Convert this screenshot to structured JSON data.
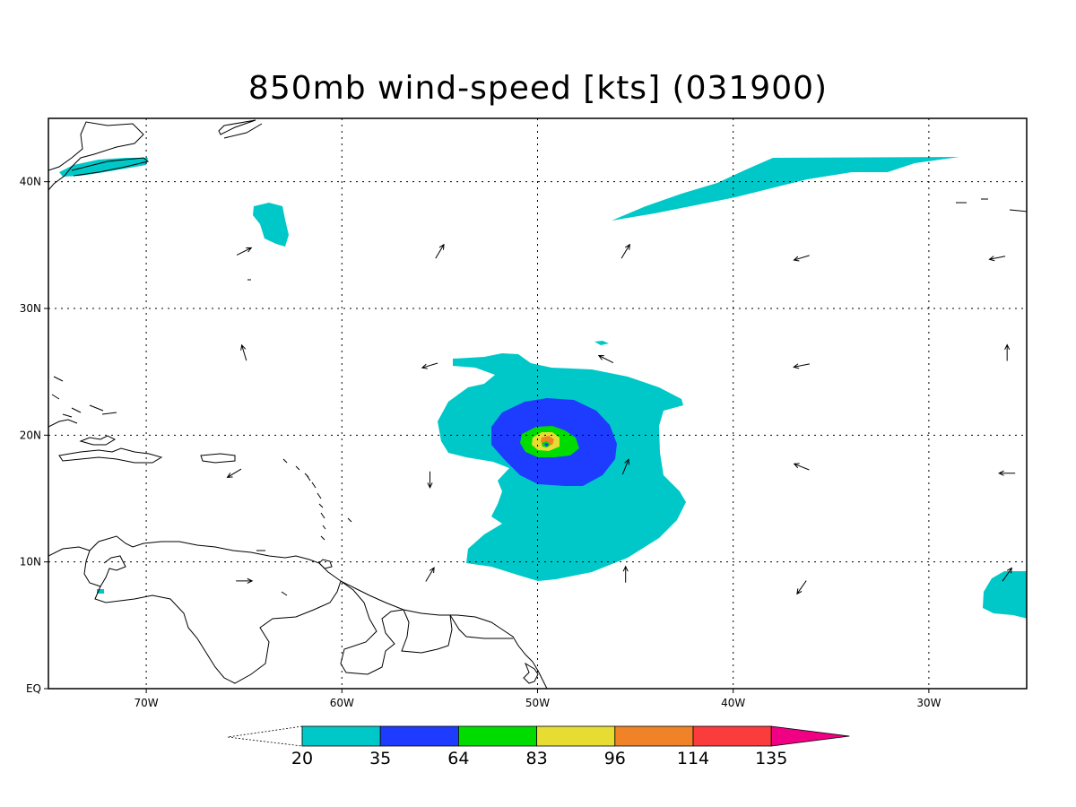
{
  "title": "850mb wind-speed [kts] (031900)",
  "map": {
    "lon_range": [
      -75,
      -25
    ],
    "lat_range": [
      0,
      45
    ],
    "lon_ticks": [
      {
        "value": -70,
        "label": "70W"
      },
      {
        "value": -60,
        "label": "60W"
      },
      {
        "value": -50,
        "label": "50W"
      },
      {
        "value": -40,
        "label": "40W"
      },
      {
        "value": -30,
        "label": "30W"
      }
    ],
    "lat_ticks": [
      {
        "value": 0,
        "label": "EQ"
      },
      {
        "value": 10,
        "label": "10N"
      },
      {
        "value": 20,
        "label": "20N"
      },
      {
        "value": 30,
        "label": "30N"
      },
      {
        "value": 40,
        "label": "40N"
      }
    ],
    "grid": true,
    "wind_vectors": [
      {
        "lon": -65,
        "lat": 34.5,
        "u": 1,
        "v": 0.5
      },
      {
        "lon": -55,
        "lat": 34.5,
        "u": 0.6,
        "v": 1
      },
      {
        "lon": -45.5,
        "lat": 34.5,
        "u": 0.6,
        "v": 1
      },
      {
        "lon": -36.5,
        "lat": 34,
        "u": -1,
        "v": -0.3
      },
      {
        "lon": -26.5,
        "lat": 34,
        "u": -1,
        "v": -0.2
      },
      {
        "lon": -65,
        "lat": 26.5,
        "u": -0.3,
        "v": 1
      },
      {
        "lon": -55.5,
        "lat": 25.5,
        "u": -1,
        "v": -0.3
      },
      {
        "lon": -46.5,
        "lat": 26,
        "u": -1,
        "v": 0.5
      },
      {
        "lon": -36.5,
        "lat": 25.5,
        "u": -1,
        "v": -0.2
      },
      {
        "lon": -26,
        "lat": 26.5,
        "u": 0,
        "v": 1
      },
      {
        "lon": -65.5,
        "lat": 17,
        "u": -1,
        "v": -0.6
      },
      {
        "lon": -55.5,
        "lat": 16.5,
        "u": 0,
        "v": -1
      },
      {
        "lon": -45.5,
        "lat": 17.5,
        "u": 0.4,
        "v": 1
      },
      {
        "lon": -36.5,
        "lat": 17.5,
        "u": -1,
        "v": 0.4
      },
      {
        "lon": -26,
        "lat": 17,
        "u": -1,
        "v": 0
      },
      {
        "lon": -65,
        "lat": 8.5,
        "u": 1,
        "v": 0
      },
      {
        "lon": -55.5,
        "lat": 9,
        "u": 0.6,
        "v": 1
      },
      {
        "lon": -45.5,
        "lat": 9,
        "u": 0,
        "v": 1
      },
      {
        "lon": -36.5,
        "lat": 8,
        "u": -0.7,
        "v": -1
      },
      {
        "lon": -26,
        "lat": 9,
        "u": 0.7,
        "v": 1
      }
    ]
  },
  "colorbar": {
    "labels": [
      "20",
      "35",
      "64",
      "83",
      "96",
      "114",
      "135"
    ],
    "colors": [
      "#00c8c8",
      "#1e3cff",
      "#00dc00",
      "#e6dc32",
      "#f08228",
      "#fa3c3c",
      "#f00082"
    ]
  }
}
